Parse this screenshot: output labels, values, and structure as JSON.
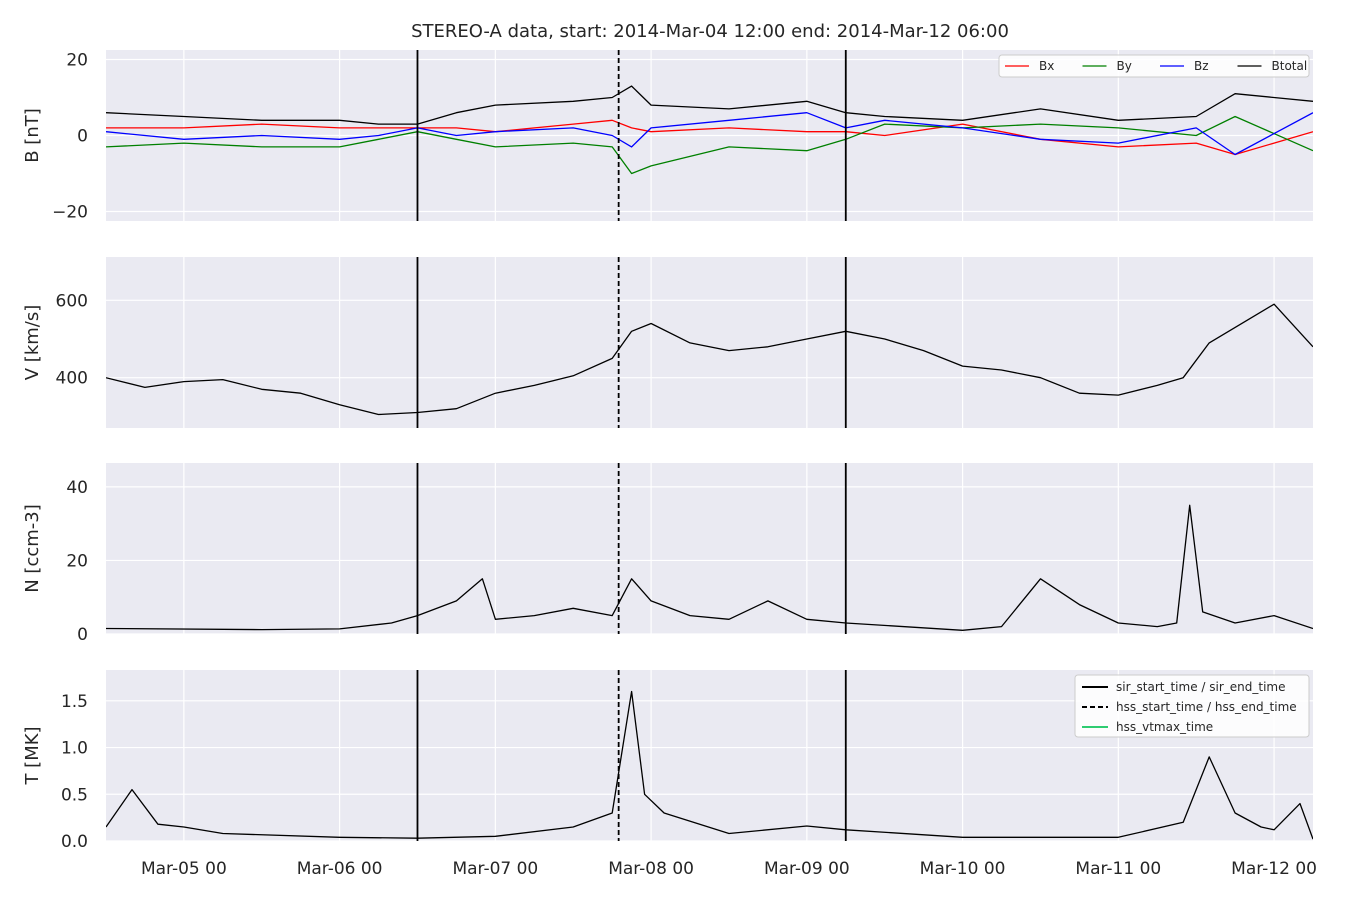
{
  "title": "STEREO-A data, start: 2014-Mar-04 12:00  end: 2014-Mar-12 06:00",
  "time_axis": {
    "start": "2014-03-04T12:00",
    "end": "2014-03-12T06:00",
    "tick_labels": [
      "Mar-05 00",
      "Mar-06 00",
      "Mar-07 00",
      "Mar-08 00",
      "Mar-09 00",
      "Mar-10 00",
      "Mar-11 00",
      "Mar-12 00"
    ],
    "tick_times": [
      "2014-03-05T00:00",
      "2014-03-06T00:00",
      "2014-03-07T00:00",
      "2014-03-08T00:00",
      "2014-03-09T00:00",
      "2014-03-10T00:00",
      "2014-03-11T00:00",
      "2014-03-12T00:00"
    ]
  },
  "event_markers": [
    {
      "legend": "sir_start_time / sir_end_time",
      "style": "solid",
      "color": "#000000",
      "times": [
        "2014-03-06T12:00",
        "2014-03-09T06:00"
      ]
    },
    {
      "legend": "hss_start_time / hss_end_time",
      "style": "dashed",
      "color": "#000000",
      "times": [
        "2014-03-07T19:00"
      ]
    },
    {
      "legend": "hss_vtmax_time",
      "style": "solid",
      "color": "#2ecc71",
      "times": []
    }
  ],
  "colors": {
    "plot_bg": "#eaeaf2",
    "grid": "#ffffff",
    "Bx": "#ff0000",
    "By": "#008000",
    "Bz": "#0000ff",
    "Btotal": "#000000"
  },
  "chart_data": [
    {
      "type": "line",
      "ylabel": "B [nT]",
      "ylim": [
        -22.5,
        22.5
      ],
      "yticks": [
        -20,
        0,
        20
      ],
      "ytick_labels": [
        "−20",
        "0",
        "20"
      ],
      "legend_position": "top-right",
      "x": [
        "2014-03-04T12:00",
        "2014-03-05T00:00",
        "2014-03-05T12:00",
        "2014-03-06T00:00",
        "2014-03-06T06:00",
        "2014-03-06T12:00",
        "2014-03-06T18:00",
        "2014-03-07T00:00",
        "2014-03-07T12:00",
        "2014-03-07T18:00",
        "2014-03-07T21:00",
        "2014-03-08T00:00",
        "2014-03-08T12:00",
        "2014-03-09T00:00",
        "2014-03-09T06:00",
        "2014-03-09T12:00",
        "2014-03-10T00:00",
        "2014-03-10T12:00",
        "2014-03-11T00:00",
        "2014-03-11T12:00",
        "2014-03-11T18:00",
        "2014-03-12T06:00"
      ],
      "series": [
        {
          "name": "Bx",
          "color": "#ff0000",
          "values": [
            2,
            2,
            3,
            2,
            2,
            2,
            2,
            1,
            3,
            4,
            2,
            1,
            2,
            1,
            1,
            0,
            3,
            -1,
            -3,
            -2,
            -5,
            1
          ]
        },
        {
          "name": "By",
          "color": "#008000",
          "values": [
            -3,
            -2,
            -3,
            -3,
            -1,
            1,
            -1,
            -3,
            -2,
            -3,
            -10,
            -8,
            -3,
            -4,
            -1,
            3,
            2,
            3,
            2,
            0,
            5,
            -4
          ]
        },
        {
          "name": "Bz",
          "color": "#0000ff",
          "values": [
            1,
            -1,
            0,
            -1,
            0,
            2,
            0,
            1,
            2,
            0,
            -3,
            2,
            4,
            6,
            2,
            4,
            2,
            -1,
            -2,
            2,
            -5,
            6
          ]
        },
        {
          "name": "Btotal",
          "color": "#000000",
          "values": [
            6,
            5,
            4,
            4,
            3,
            3,
            6,
            8,
            9,
            10,
            13,
            8,
            7,
            9,
            6,
            5,
            4,
            7,
            4,
            5,
            11,
            9
          ]
        }
      ]
    },
    {
      "type": "line",
      "ylabel": "V [km/s]",
      "ylim": [
        270,
        712
      ],
      "yticks": [
        400,
        600
      ],
      "ytick_labels": [
        "400",
        "600"
      ],
      "x": [
        "2014-03-04T12:00",
        "2014-03-04T18:00",
        "2014-03-05T00:00",
        "2014-03-05T06:00",
        "2014-03-05T12:00",
        "2014-03-05T18:00",
        "2014-03-06T00:00",
        "2014-03-06T06:00",
        "2014-03-06T12:00",
        "2014-03-06T18:00",
        "2014-03-07T00:00",
        "2014-03-07T06:00",
        "2014-03-07T12:00",
        "2014-03-07T18:00",
        "2014-03-07T21:00",
        "2014-03-08T00:00",
        "2014-03-08T06:00",
        "2014-03-08T12:00",
        "2014-03-08T18:00",
        "2014-03-09T00:00",
        "2014-03-09T06:00",
        "2014-03-09T12:00",
        "2014-03-09T18:00",
        "2014-03-10T00:00",
        "2014-03-10T06:00",
        "2014-03-10T12:00",
        "2014-03-10T18:00",
        "2014-03-11T00:00",
        "2014-03-11T06:00",
        "2014-03-11T10:00",
        "2014-03-11T14:00",
        "2014-03-11T20:00",
        "2014-03-12T00:00",
        "2014-03-12T06:00"
      ],
      "series": [
        {
          "name": "V",
          "color": "#000000",
          "values": [
            400,
            375,
            390,
            395,
            370,
            360,
            330,
            305,
            310,
            320,
            360,
            380,
            405,
            450,
            520,
            540,
            490,
            470,
            480,
            500,
            520,
            500,
            470,
            430,
            420,
            400,
            360,
            355,
            380,
            400,
            490,
            550,
            590,
            480
          ]
        }
      ]
    },
    {
      "type": "line",
      "ylabel": "N [ccm-3]",
      "ylim": [
        0,
        46.5
      ],
      "yticks": [
        0,
        20,
        40
      ],
      "ytick_labels": [
        "0",
        "20",
        "40"
      ],
      "x": [
        "2014-03-04T12:00",
        "2014-03-05T12:00",
        "2014-03-06T00:00",
        "2014-03-06T08:00",
        "2014-03-06T12:00",
        "2014-03-06T18:00",
        "2014-03-06T22:00",
        "2014-03-07T00:00",
        "2014-03-07T06:00",
        "2014-03-07T12:00",
        "2014-03-07T18:00",
        "2014-03-07T21:00",
        "2014-03-08T00:00",
        "2014-03-08T06:00",
        "2014-03-08T12:00",
        "2014-03-08T18:00",
        "2014-03-09T00:00",
        "2014-03-09T06:00",
        "2014-03-10T00:00",
        "2014-03-10T06:00",
        "2014-03-10T12:00",
        "2014-03-10T18:00",
        "2014-03-11T00:00",
        "2014-03-11T06:00",
        "2014-03-11T09:00",
        "2014-03-11T11:00",
        "2014-03-11T13:00",
        "2014-03-11T18:00",
        "2014-03-12T00:00",
        "2014-03-12T06:00"
      ],
      "series": [
        {
          "name": "N",
          "color": "#000000",
          "values": [
            1.5,
            1.2,
            1.4,
            3,
            5,
            9,
            15,
            4,
            5,
            7,
            5,
            15,
            9,
            5,
            4,
            9,
            4,
            3,
            1,
            2,
            15,
            8,
            3,
            2,
            3,
            35,
            6,
            3,
            5,
            1.5
          ]
        }
      ]
    },
    {
      "type": "line",
      "ylabel": "T [MK]",
      "ylim": [
        0,
        1.83
      ],
      "yticks": [
        0,
        0.5,
        1,
        1.5
      ],
      "ytick_labels": [
        "0.0",
        "0.5",
        "1.0",
        "1.5"
      ],
      "legend_position": "top-right",
      "x": [
        "2014-03-04T12:00",
        "2014-03-04T16:00",
        "2014-03-04T20:00",
        "2014-03-05T00:00",
        "2014-03-05T06:00",
        "2014-03-06T00:00",
        "2014-03-06T12:00",
        "2014-03-07T00:00",
        "2014-03-07T12:00",
        "2014-03-07T18:00",
        "2014-03-07T21:00",
        "2014-03-07T23:00",
        "2014-03-08T02:00",
        "2014-03-08T12:00",
        "2014-03-09T00:00",
        "2014-03-09T06:00",
        "2014-03-10T00:00",
        "2014-03-11T00:00",
        "2014-03-11T10:00",
        "2014-03-11T14:00",
        "2014-03-11T18:00",
        "2014-03-11T22:00",
        "2014-03-12T00:00",
        "2014-03-12T04:00",
        "2014-03-12T06:00"
      ],
      "series": [
        {
          "name": "T",
          "color": "#000000",
          "values": [
            0.15,
            0.55,
            0.18,
            0.15,
            0.08,
            0.04,
            0.03,
            0.05,
            0.15,
            0.3,
            1.6,
            0.5,
            0.3,
            0.08,
            0.16,
            0.12,
            0.04,
            0.04,
            0.2,
            0.9,
            0.3,
            0.15,
            0.12,
            0.4,
            0.02
          ]
        }
      ]
    }
  ]
}
